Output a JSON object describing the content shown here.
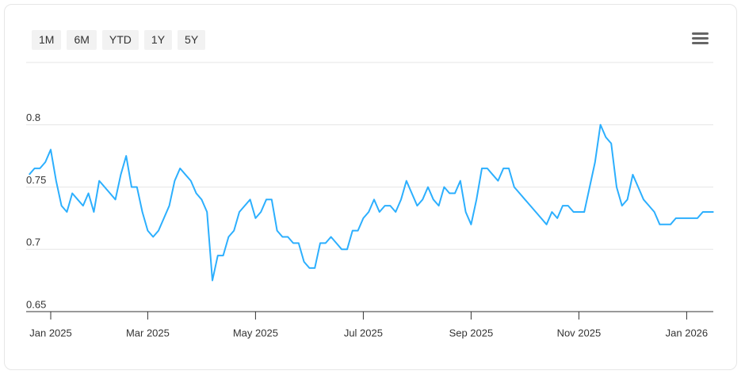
{
  "range_buttons": [
    "1M",
    "6M",
    "YTD",
    "1Y",
    "5Y"
  ],
  "chart_data": {
    "type": "line",
    "color": "#2caffe",
    "grid": true,
    "ylim": [
      0.65,
      0.85
    ],
    "yticks": [
      0.65,
      0.7,
      0.75,
      0.8
    ],
    "categories": [
      null,
      null,
      null,
      null,
      "Jan 2025",
      null,
      null,
      null,
      null,
      null,
      null,
      null,
      null,
      null,
      null,
      null,
      null,
      null,
      null,
      null,
      null,
      null,
      "Mar 2025",
      null,
      null,
      null,
      null,
      null,
      null,
      null,
      null,
      null,
      null,
      null,
      null,
      null,
      null,
      null,
      null,
      null,
      null,
      null,
      "May 2025",
      null,
      null,
      null,
      null,
      null,
      null,
      null,
      null,
      null,
      null,
      null,
      null,
      null,
      null,
      null,
      null,
      null,
      null,
      null,
      "Jul 2025",
      null,
      null,
      null,
      null,
      null,
      null,
      null,
      null,
      null,
      null,
      null,
      null,
      null,
      null,
      null,
      null,
      null,
      null,
      null,
      "Sep 2025",
      null,
      null,
      null,
      null,
      null,
      null,
      null,
      null,
      null,
      null,
      null,
      null,
      null,
      null,
      null,
      null,
      null,
      null,
      null,
      "Nov 2025",
      null,
      null,
      null,
      null,
      null,
      null,
      null,
      null,
      null,
      null,
      null,
      null,
      null,
      null,
      null,
      null,
      null,
      null,
      null,
      "Jan 2026",
      null,
      null,
      null,
      null,
      null
    ],
    "values": [
      0.76,
      0.765,
      0.765,
      0.77,
      0.78,
      0.755,
      0.735,
      0.73,
      0.745,
      0.74,
      0.735,
      0.745,
      0.73,
      0.755,
      0.75,
      0.745,
      0.74,
      0.76,
      0.775,
      0.75,
      0.75,
      0.73,
      0.715,
      0.71,
      0.715,
      0.725,
      0.735,
      0.755,
      0.765,
      0.76,
      0.755,
      0.745,
      0.74,
      0.73,
      0.675,
      0.695,
      0.695,
      0.71,
      0.715,
      0.73,
      0.735,
      0.74,
      0.725,
      0.73,
      0.74,
      0.74,
      0.715,
      0.71,
      0.71,
      0.705,
      0.705,
      0.69,
      0.685,
      0.685,
      0.705,
      0.705,
      0.71,
      0.705,
      0.7,
      0.7,
      0.715,
      0.715,
      0.725,
      0.73,
      0.74,
      0.73,
      0.735,
      0.735,
      0.73,
      0.74,
      0.755,
      0.745,
      0.735,
      0.74,
      0.75,
      0.74,
      0.735,
      0.75,
      0.745,
      0.745,
      0.755,
      0.73,
      0.72,
      0.74,
      0.765,
      0.765,
      0.76,
      0.755,
      0.765,
      0.765,
      0.75,
      0.745,
      0.74,
      0.735,
      0.73,
      0.725,
      0.72,
      0.73,
      0.725,
      0.735,
      0.735,
      0.73,
      0.73,
      0.73,
      0.75,
      0.77,
      0.8,
      0.79,
      0.785,
      0.75,
      0.735,
      0.74,
      0.76,
      0.75,
      0.74,
      0.735,
      0.73,
      0.72,
      0.72,
      0.72,
      0.725,
      0.725,
      0.725,
      0.725,
      0.725,
      0.73,
      0.73,
      0.73
    ]
  }
}
